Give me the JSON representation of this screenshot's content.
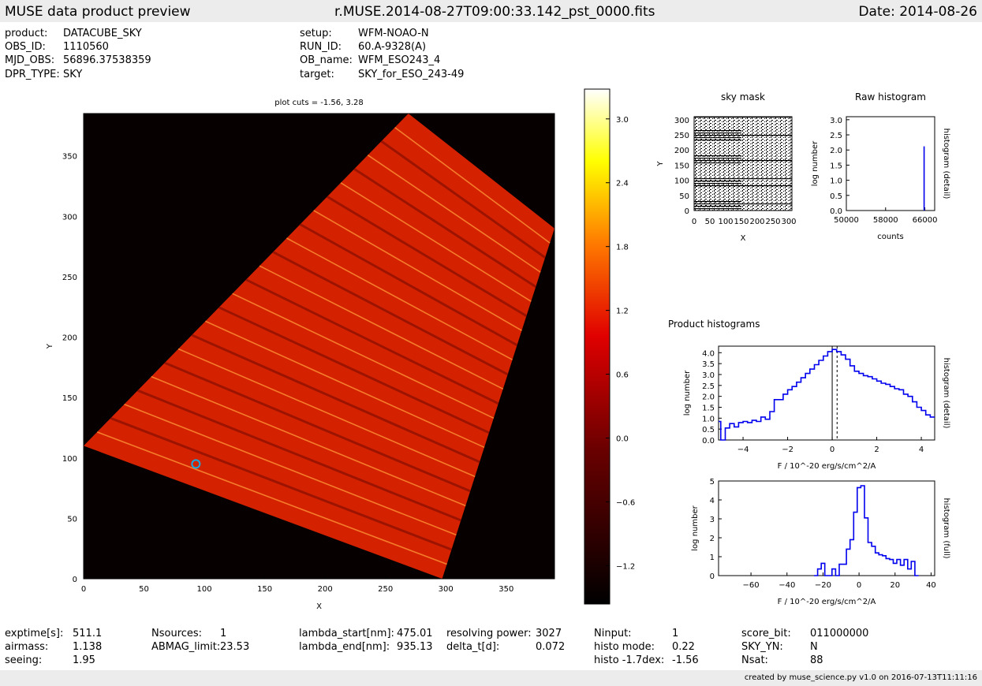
{
  "header": {
    "left_title": "MUSE data product preview",
    "center_title": "r.MUSE.2014-08-27T09:00:33.142_pst_0000.fits",
    "date": "Date: 2014-08-26"
  },
  "meta_left": [
    {
      "key": "product:",
      "value": "DATACUBE_SKY"
    },
    {
      "key": "OBS_ID:",
      "value": "1110560"
    },
    {
      "key": "MJD_OBS:",
      "value": "56896.37538359"
    },
    {
      "key": "DPR_TYPE:",
      "value": "SKY"
    }
  ],
  "meta_right": [
    {
      "key": "setup:",
      "value": "WFM-NOAO-N"
    },
    {
      "key": "RUN_ID:",
      "value": "60.A-9328(A)"
    },
    {
      "key": "OB_name:",
      "value": "WFM_ESO243_4"
    },
    {
      "key": "target:",
      "value": "SKY_for_ESO_243-49"
    }
  ],
  "footer_stats": [
    {
      "key": "exptime[s]:",
      "value": "511.1"
    },
    {
      "key": "airmass:",
      "value": "1.138"
    },
    {
      "key": "seeing:",
      "value": "1.95"
    },
    {
      "key": "Nsources:",
      "value": "1"
    },
    {
      "key": "ABMAG_limit:",
      "value": "23.53"
    },
    {
      "key": "lambda_start[nm]:",
      "value": "475.01"
    },
    {
      "key": "lambda_end[nm]:",
      "value": "935.13"
    },
    {
      "key": "resolving power:",
      "value": "3027"
    },
    {
      "key": "delta_t[d]:",
      "value": "0.072"
    },
    {
      "key": "Ninput:",
      "value": "1"
    },
    {
      "key": "histo mode:",
      "value": "0.22"
    },
    {
      "key": "histo -1.7dex:",
      "value": "-1.56"
    },
    {
      "key": "score_bit:",
      "value": "011000000"
    },
    {
      "key": "SKY_YN:",
      "value": "N"
    },
    {
      "key": "Nsat:",
      "value": "88"
    }
  ],
  "credit": "created by muse_science.py v1.0 on 2016-07-13T11:11:16",
  "chart_data": [
    {
      "type": "heatmap",
      "title": "plot cuts = -1.56, 3.28",
      "xlabel": "X",
      "ylabel": "Y",
      "xlim": [
        0,
        390
      ],
      "ylim": [
        0,
        385
      ],
      "xticks": [
        0,
        50,
        100,
        150,
        200,
        250,
        300,
        350
      ],
      "yticks": [
        0,
        50,
        100,
        150,
        200,
        250,
        300,
        350
      ],
      "colorbar": {
        "ticks": [
          "3.0",
          "2.4",
          "1.8",
          "1.2",
          "0.6",
          "0.0",
          "−0.6",
          "−1.2"
        ],
        "tick_values": [
          3.0,
          2.4,
          1.8,
          1.2,
          0.6,
          0.0,
          -0.6,
          -1.2
        ],
        "range": [
          -1.56,
          3.28
        ]
      },
      "field_corners": [
        [
          269,
          385
        ],
        [
          390,
          290
        ],
        [
          297,
          0
        ],
        [
          0,
          110
        ]
      ],
      "source": {
        "x": 93,
        "y": 95
      }
    },
    {
      "type": "heatmap",
      "title": "sky mask",
      "xlabel": "X",
      "ylabel": "Y",
      "xlim": [
        0,
        310
      ],
      "ylim": [
        0,
        310
      ],
      "xticks": [
        "0",
        "50",
        "100",
        "150",
        "200",
        "250",
        "300"
      ],
      "yticks": [
        "0",
        "50",
        "100",
        "150",
        "200",
        "250",
        "300"
      ],
      "tick_values": [
        0,
        50,
        100,
        150,
        200,
        250,
        300
      ]
    },
    {
      "type": "line",
      "title": "Raw histogram",
      "xlabel": "counts",
      "ylabel": "log number",
      "y2label": "histogram (detail)",
      "xlim": [
        50000,
        68000
      ],
      "ylim": [
        0,
        3.1
      ],
      "xticks": [
        "50000",
        "58000",
        "66000"
      ],
      "xtick_values": [
        50000,
        58000,
        66000
      ],
      "yticks": [
        "0.0",
        "0.5",
        "1.0",
        "1.5",
        "2.0",
        "2.5",
        "3.0"
      ],
      "ytick_values": [
        0,
        0.5,
        1,
        1.5,
        2,
        2.5,
        3
      ],
      "series": [
        {
          "x": [
            65850,
            65850
          ],
          "y": [
            0,
            2.12
          ]
        }
      ]
    },
    {
      "type": "line",
      "title": "Product histograms",
      "xlabel": "F / 10^-20 erg/s/cm^2/A",
      "ylabel": "log number",
      "y2label": "histogram (detail)",
      "xlim": [
        -5.1,
        4.6
      ],
      "ylim": [
        0,
        4.3
      ],
      "xticks": [
        "−4",
        "−2",
        "0",
        "2",
        "4"
      ],
      "xtick_values": [
        -4,
        -2,
        0,
        2,
        4
      ],
      "yticks": [
        "0.0",
        "0.5",
        "1.0",
        "1.5",
        "2.0",
        "2.5",
        "3.0",
        "3.5",
        "4.0"
      ],
      "ytick_values": [
        0,
        0.5,
        1,
        1.5,
        2,
        2.5,
        3,
        3.5,
        4
      ],
      "vlines": [
        {
          "x": 0,
          "style": "solid"
        },
        {
          "x": 0.22,
          "style": "dotted"
        }
      ],
      "series": [
        {
          "step": true,
          "x": [
            -5.1,
            -4.9,
            -4.7,
            -4.5,
            -4.3,
            -4.1,
            -3.9,
            -3.7,
            -3.5,
            -3.3,
            -3.1,
            -2.9,
            -2.7,
            -2.5,
            -2.3,
            -2.1,
            -1.9,
            -1.7,
            -1.5,
            -1.3,
            -1.1,
            -0.9,
            -0.7,
            -0.5,
            -0.3,
            -0.1,
            0.1,
            0.3,
            0.5,
            0.7,
            0.9,
            1.1,
            1.3,
            1.5,
            1.7,
            1.9,
            2.1,
            2.3,
            2.5,
            2.7,
            2.9,
            3.1,
            3.3,
            3.5,
            3.7,
            3.9,
            4.1,
            4.3,
            4.5
          ],
          "y": [
            0.85,
            0,
            0.55,
            0.75,
            0.6,
            0.8,
            0.85,
            0.8,
            0.9,
            0.85,
            1.05,
            0.95,
            1.3,
            1.85,
            1.85,
            2.1,
            2.3,
            2.45,
            2.65,
            2.85,
            3.05,
            3.25,
            3.45,
            3.65,
            3.85,
            4.05,
            4.15,
            4.05,
            3.9,
            3.7,
            3.4,
            3.15,
            3.05,
            2.95,
            2.9,
            2.8,
            2.7,
            2.6,
            2.55,
            2.45,
            2.35,
            2.3,
            2.1,
            2.0,
            1.75,
            1.5,
            1.35,
            1.15,
            1.05
          ]
        }
      ]
    },
    {
      "type": "line",
      "title": "",
      "xlabel": "F / 10^-20 erg/s/cm^2/A",
      "ylabel": "log number",
      "y2label": "histogram (full)",
      "xlim": [
        -78,
        42
      ],
      "ylim": [
        0,
        5
      ],
      "xticks": [
        "−60",
        "−40",
        "−20",
        "0",
        "20",
        "40"
      ],
      "xtick_values": [
        -60,
        -40,
        -20,
        0,
        20,
        40
      ],
      "yticks": [
        "0",
        "1",
        "2",
        "3",
        "4",
        "5"
      ],
      "ytick_values": [
        0,
        1,
        2,
        3,
        4,
        5
      ],
      "series": [
        {
          "step": true,
          "x": [
            -24,
            -22,
            -20,
            -18,
            -16,
            -14,
            -12,
            -10,
            -8,
            -6,
            -4,
            -2,
            0,
            2,
            4,
            6,
            8,
            10,
            12,
            14,
            16,
            18,
            20,
            22,
            24,
            26,
            28,
            30,
            32
          ],
          "y": [
            0,
            0.35,
            0.65,
            0,
            0,
            0.35,
            0,
            0.6,
            0.6,
            1.4,
            1.9,
            3.35,
            4.65,
            4.75,
            3.05,
            1.75,
            1.55,
            1.2,
            1.1,
            1.05,
            0.9,
            0.85,
            0.65,
            0.85,
            0.55,
            0.85,
            0.35,
            0.75,
            0
          ]
        }
      ]
    }
  ]
}
